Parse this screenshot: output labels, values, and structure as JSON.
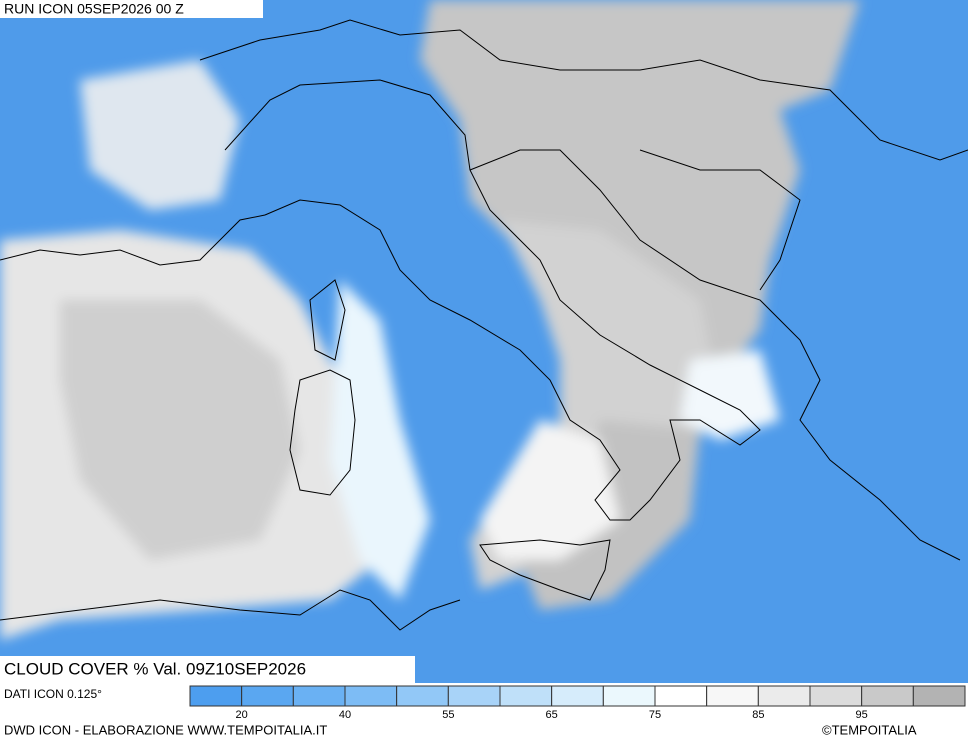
{
  "header": {
    "run": "RUN ICON 05SEP2026 00 Z"
  },
  "map": {
    "title": "CLOUD COVER % Val. 09Z10SEP2026"
  },
  "legend": {
    "source": "DATI ICON 0.125°",
    "colors": [
      "#4d9eef",
      "#5aa7f1",
      "#6ab1f3",
      "#7dbcf5",
      "#92c8f7",
      "#a8d3f8",
      "#bfe0f9",
      "#d6ecfb",
      "#ebf8fd",
      "#ffffff",
      "#f7f7f7",
      "#ebebeb",
      "#dcdcdc",
      "#c9c9c9",
      "#b3b3b3"
    ],
    "ticks": [
      20,
      40,
      55,
      65,
      75,
      85,
      95
    ]
  },
  "footer": {
    "credit": "DWD ICON - ELABORAZIONE WWW.TEMPOITALIA.IT",
    "copyright": "©TEMPOITALIA"
  }
}
